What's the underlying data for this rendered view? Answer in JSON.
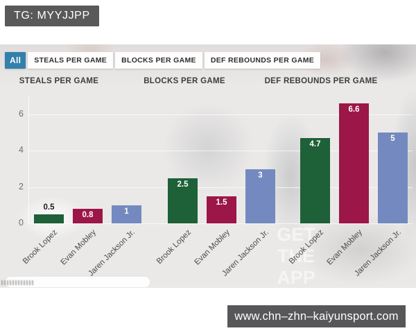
{
  "header": {
    "tg_label": "TG: MYYJJPP"
  },
  "tabs": [
    {
      "label": "All",
      "active": true
    },
    {
      "label": "STEALS PER GAME",
      "active": false
    },
    {
      "label": "BLOCKS PER GAME",
      "active": false
    },
    {
      "label": "DEF REBOUNDS PER GAME",
      "active": false
    }
  ],
  "chart_data": {
    "type": "bar",
    "categories": [
      "Brook Lopez",
      "Evan Mobley",
      "Jaren Jackson Jr."
    ],
    "panels": [
      {
        "title": "STEALS PER GAME",
        "values": [
          0.5,
          0.8,
          1
        ]
      },
      {
        "title": "BLOCKS PER GAME",
        "values": [
          2.5,
          1.5,
          3
        ]
      },
      {
        "title": "DEF REBOUNDS PER GAME",
        "values": [
          4.7,
          6.6,
          5
        ]
      }
    ],
    "yticks": [
      0,
      2,
      4,
      6
    ],
    "ylim": [
      0,
      7
    ],
    "grid": true,
    "legend": "none",
    "series_colors": [
      "#1e6038",
      "#9c1648",
      "#7389bf"
    ]
  },
  "background": {
    "led_lines": [
      "GET",
      "THE",
      "APP"
    ]
  },
  "footer": {
    "url": "www.chn–zhn–kaiyunsport.com"
  },
  "colors": {
    "tab_active": "#3380ab",
    "badge_bg": "#595959",
    "plate_bg": "#57575a",
    "green": "#1e6038",
    "maroon": "#9c1648",
    "blue": "#7389bf"
  }
}
